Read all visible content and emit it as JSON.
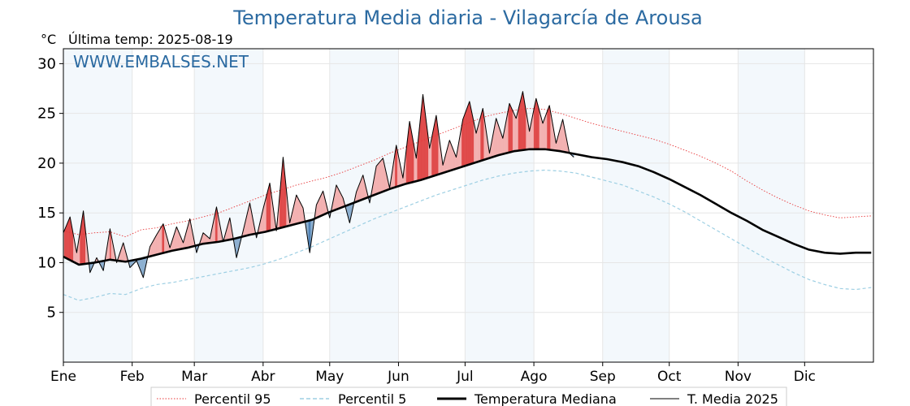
{
  "chart_data": {
    "type": "line",
    "title": "Temperatura Media diaria - Vilagarcía de Arousa",
    "unit_label": "°C",
    "last_temp_label": "Última temp: 2025-08-19",
    "watermark": "WWW.EMBALSES.NET",
    "xlabel": "",
    "ylabel": "",
    "ylim": [
      0,
      31.5
    ],
    "yticks": [
      5,
      10,
      15,
      20,
      25,
      30
    ],
    "x_range_days": [
      1,
      366
    ],
    "month_ticks": [
      {
        "label": "Ene",
        "day": 1
      },
      {
        "label": "Feb",
        "day": 32
      },
      {
        "label": "Mar",
        "day": 60
      },
      {
        "label": "Abr",
        "day": 91
      },
      {
        "label": "May",
        "day": 121
      },
      {
        "label": "Jun",
        "day": 152
      },
      {
        "label": "Jul",
        "day": 182
      },
      {
        "label": "Ago",
        "day": 213
      },
      {
        "label": "Sep",
        "day": 244
      },
      {
        "label": "Oct",
        "day": 274
      },
      {
        "label": "Nov",
        "day": 305
      },
      {
        "label": "Dic",
        "day": 335
      }
    ],
    "grid": true,
    "legend_position": "bottom-center",
    "series": [
      {
        "name": "Percentil 95",
        "style": "dotted",
        "color": "#e8383a",
        "x": [
          1,
          8,
          15,
          22,
          29,
          36,
          43,
          50,
          57,
          64,
          71,
          78,
          85,
          92,
          99,
          106,
          113,
          120,
          127,
          134,
          141,
          148,
          155,
          162,
          169,
          176,
          183,
          190,
          197,
          204,
          211,
          218,
          225,
          232,
          239,
          246,
          253,
          260,
          267,
          274,
          281,
          288,
          295,
          302,
          309,
          316,
          323,
          330,
          337,
          344,
          351,
          358,
          365
        ],
        "values": [
          13.2,
          12.8,
          13.0,
          13.1,
          12.6,
          13.3,
          13.5,
          13.9,
          14.2,
          14.6,
          15.0,
          15.6,
          16.2,
          16.8,
          17.3,
          17.8,
          18.2,
          18.6,
          19.1,
          19.7,
          20.3,
          21.0,
          21.6,
          22.2,
          22.8,
          23.4,
          24.0,
          24.6,
          25.0,
          25.3,
          25.5,
          25.4,
          25.0,
          24.5,
          24.0,
          23.6,
          23.2,
          22.8,
          22.4,
          21.9,
          21.3,
          20.7,
          20.0,
          19.2,
          18.2,
          17.3,
          16.5,
          15.8,
          15.2,
          14.8,
          14.5,
          14.6,
          14.7
        ]
      },
      {
        "name": "Percentil 5",
        "style": "dashed",
        "color": "#9dcfe3",
        "x": [
          1,
          8,
          15,
          22,
          29,
          36,
          43,
          50,
          57,
          64,
          71,
          78,
          85,
          92,
          99,
          106,
          113,
          120,
          127,
          134,
          141,
          148,
          155,
          162,
          169,
          176,
          183,
          190,
          197,
          204,
          211,
          218,
          225,
          232,
          239,
          246,
          253,
          260,
          267,
          274,
          281,
          288,
          295,
          302,
          309,
          316,
          323,
          330,
          337,
          344,
          351,
          358,
          365
        ],
        "values": [
          6.8,
          6.2,
          6.5,
          6.9,
          6.8,
          7.4,
          7.8,
          8.0,
          8.3,
          8.6,
          8.9,
          9.2,
          9.5,
          9.9,
          10.4,
          11.0,
          11.6,
          12.3,
          13.0,
          13.7,
          14.4,
          15.0,
          15.6,
          16.2,
          16.8,
          17.3,
          17.8,
          18.3,
          18.7,
          19.0,
          19.2,
          19.3,
          19.2,
          19.0,
          18.6,
          18.2,
          17.8,
          17.2,
          16.6,
          15.9,
          15.1,
          14.2,
          13.3,
          12.4,
          11.5,
          10.6,
          9.8,
          9.0,
          8.3,
          7.8,
          7.4,
          7.3,
          7.5
        ]
      },
      {
        "name": "Temperatura Mediana",
        "style": "solid-thick",
        "color": "#000000",
        "x": [
          1,
          8,
          15,
          22,
          29,
          36,
          43,
          50,
          57,
          64,
          71,
          78,
          85,
          92,
          99,
          106,
          113,
          120,
          127,
          134,
          141,
          148,
          155,
          162,
          169,
          176,
          183,
          190,
          197,
          204,
          211,
          218,
          225,
          232,
          239,
          246,
          253,
          260,
          267,
          274,
          281,
          288,
          295,
          302,
          309,
          316,
          323,
          330,
          337,
          344,
          351,
          358,
          365
        ],
        "values": [
          10.6,
          9.8,
          10.0,
          10.3,
          10.1,
          10.4,
          10.8,
          11.2,
          11.5,
          11.9,
          12.1,
          12.4,
          12.8,
          13.1,
          13.5,
          13.9,
          14.3,
          15.0,
          15.6,
          16.2,
          16.8,
          17.4,
          17.9,
          18.3,
          18.8,
          19.3,
          19.8,
          20.3,
          20.8,
          21.2,
          21.4,
          21.4,
          21.2,
          20.9,
          20.6,
          20.4,
          20.1,
          19.7,
          19.1,
          18.4,
          17.6,
          16.8,
          15.9,
          15.0,
          14.2,
          13.3,
          12.6,
          11.9,
          11.3,
          11.0,
          10.9,
          11.0,
          11.0
        ]
      },
      {
        "name": "T. Media 2025",
        "style": "solid-thin",
        "color": "#000000",
        "x": [
          1,
          4,
          7,
          10,
          13,
          16,
          19,
          22,
          25,
          28,
          31,
          34,
          37,
          40,
          43,
          46,
          49,
          52,
          55,
          58,
          61,
          64,
          67,
          70,
          73,
          76,
          79,
          82,
          85,
          88,
          91,
          94,
          97,
          100,
          103,
          106,
          109,
          112,
          115,
          118,
          121,
          124,
          127,
          130,
          133,
          136,
          139,
          142,
          145,
          148,
          151,
          154,
          157,
          160,
          163,
          166,
          169,
          172,
          175,
          178,
          181,
          184,
          187,
          190,
          193,
          196,
          199,
          202,
          205,
          208,
          211,
          214,
          217,
          220,
          223,
          226,
          229,
          231
        ],
        "values": [
          13.0,
          14.6,
          11.0,
          15.2,
          9.0,
          10.5,
          9.2,
          13.4,
          10.0,
          12.0,
          9.5,
          10.2,
          8.5,
          11.6,
          12.8,
          13.9,
          11.5,
          13.6,
          12.0,
          14.4,
          11.0,
          13.0,
          12.4,
          15.6,
          12.1,
          14.5,
          10.5,
          13.2,
          16.0,
          12.5,
          15.4,
          18.0,
          13.2,
          20.6,
          14.0,
          16.8,
          15.5,
          11.0,
          15.8,
          17.2,
          14.5,
          17.8,
          16.5,
          14.0,
          17.1,
          18.8,
          16.0,
          19.7,
          20.5,
          17.5,
          21.8,
          18.5,
          24.2,
          20.5,
          26.9,
          21.5,
          24.8,
          19.8,
          22.3,
          20.6,
          24.4,
          26.2,
          23.0,
          25.5,
          21.0,
          24.5,
          22.5,
          26.0,
          24.5,
          27.2,
          23.2,
          26.5,
          24.0,
          25.8,
          22.0,
          24.4,
          21.0,
          20.6
        ]
      }
    ]
  }
}
